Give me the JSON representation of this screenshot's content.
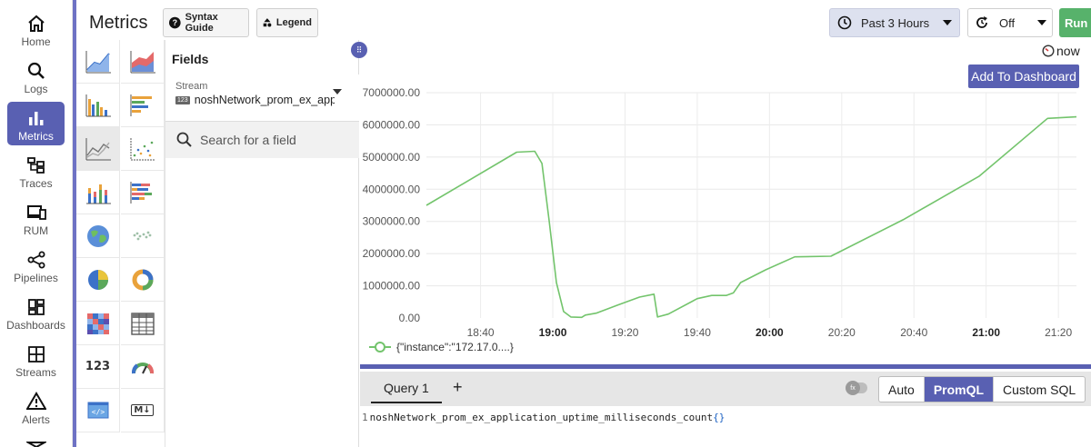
{
  "nav": {
    "items": [
      {
        "label": "Home",
        "icon": "home-icon"
      },
      {
        "label": "Logs",
        "icon": "search-icon"
      },
      {
        "label": "Metrics",
        "icon": "bar-chart-icon",
        "active": true
      },
      {
        "label": "Traces",
        "icon": "traces-icon"
      },
      {
        "label": "RUM",
        "icon": "devices-icon"
      },
      {
        "label": "Pipelines",
        "icon": "pipeline-icon"
      },
      {
        "label": "Dashboards",
        "icon": "dashboard-icon"
      },
      {
        "label": "Streams",
        "icon": "streams-icon"
      },
      {
        "label": "Alerts",
        "icon": "warning-icon"
      }
    ]
  },
  "header": {
    "title": "Metrics",
    "syntax_guide": "Syntax Guide",
    "legend": "Legend",
    "time_range": "Past 3 Hours",
    "refresh": "Off",
    "run": "Run Query"
  },
  "chart_types": [
    "area",
    "area-stacked",
    "bar",
    "h-bar",
    "line",
    "scatter",
    "stacked",
    "h-stacked",
    "geomap",
    "maps",
    "pie",
    "donut",
    "heatmap",
    "table",
    "metric",
    "gauge",
    "html",
    "markdown"
  ],
  "metric_text": "123",
  "markdown_text": "M↓",
  "fields": {
    "title": "Fields",
    "stream_label": "Stream",
    "stream_badge": "123",
    "stream_value": "noshNetwork_prom_ex_application_uptime_milliseconds_count",
    "search_placeholder": "Search for a field"
  },
  "panel": {
    "now_label": "now",
    "add_to_dashboard": "Add To Dashboard",
    "progress": 1.0
  },
  "chart_data": {
    "type": "line",
    "y_ticks": [
      "0.00",
      "1000000.00",
      "2000000.00",
      "3000000.00",
      "4000000.00",
      "5000000.00",
      "6000000.00",
      "7000000.00"
    ],
    "x_ticks": [
      {
        "label": "18:40",
        "bold": false
      },
      {
        "label": "19:00",
        "bold": true
      },
      {
        "label": "19:20",
        "bold": false
      },
      {
        "label": "19:40",
        "bold": false
      },
      {
        "label": "20:00",
        "bold": true
      },
      {
        "label": "20:20",
        "bold": false
      },
      {
        "label": "20:40",
        "bold": false
      },
      {
        "label": "21:00",
        "bold": true
      },
      {
        "label": "21:20",
        "bold": false
      }
    ],
    "xlim_minutes": [
      1105,
      1285
    ],
    "ylim": [
      0,
      7000000
    ],
    "grid": true,
    "legend_placement": "bottom-left",
    "series": [
      {
        "name": "{\"instance\":\"172.17.0....}",
        "color": "#73c46c",
        "points": [
          [
            1105,
            3500000
          ],
          [
            1130,
            5150000
          ],
          [
            1135,
            5180000
          ],
          [
            1137,
            4800000
          ],
          [
            1139,
            3000000
          ],
          [
            1141,
            1100000
          ],
          [
            1143,
            200000
          ],
          [
            1145,
            30000
          ],
          [
            1148,
            20000
          ],
          [
            1149,
            90000
          ],
          [
            1152,
            150000
          ],
          [
            1158,
            400000
          ],
          [
            1164,
            650000
          ],
          [
            1168,
            740000
          ],
          [
            1169,
            30000
          ],
          [
            1172,
            120000
          ],
          [
            1180,
            600000
          ],
          [
            1184,
            700000
          ],
          [
            1188,
            700000
          ],
          [
            1190,
            780000
          ],
          [
            1192,
            1100000
          ],
          [
            1199,
            1500000
          ],
          [
            1207,
            1900000
          ],
          [
            1217,
            1920000
          ],
          [
            1237,
            3050000
          ],
          [
            1258,
            4400000
          ],
          [
            1277,
            6200000
          ],
          [
            1285,
            6250000
          ]
        ]
      }
    ]
  },
  "query": {
    "tab": "Query 1",
    "add": "+",
    "modes": [
      "Auto",
      "PromQL",
      "Custom SQL"
    ],
    "active_mode": "PromQL",
    "line_number": "1",
    "text": "noshNetwork_prom_ex_application_uptime_milliseconds_count",
    "braces": "{}"
  }
}
